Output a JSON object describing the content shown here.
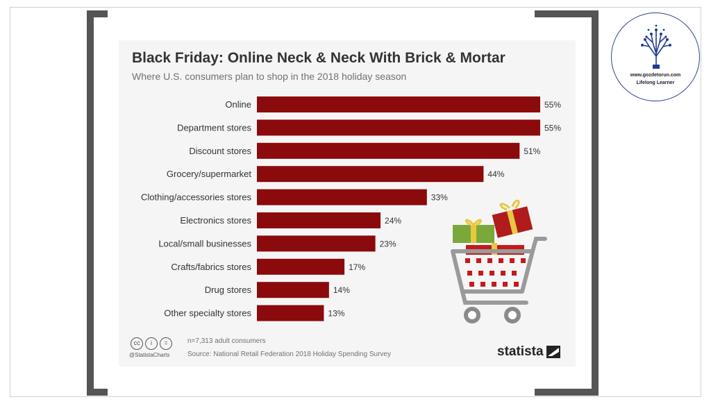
{
  "colors": {
    "bar": "#8b0a0c",
    "frame": "#555555",
    "card": "#f5f5f5",
    "badge_ring": "#2a3f8f"
  },
  "chart_data": {
    "type": "bar",
    "orientation": "horizontal",
    "title": "Black Friday: Online Neck & Neck With Brick & Mortar",
    "subtitle": "Where U.S. consumers plan to shop in the 2018 holiday season",
    "categories": [
      "Online",
      "Department stores",
      "Discount stores",
      "Grocery/supermarket",
      "Clothing/accessories stores",
      "Electronics stores",
      "Local/small businesses",
      "Crafts/fabrics stores",
      "Drug stores",
      "Other specialty stores"
    ],
    "values": [
      55,
      55,
      51,
      44,
      33,
      24,
      23,
      17,
      14,
      13
    ],
    "value_labels": [
      "55%",
      "55%",
      "51%",
      "44%",
      "33%",
      "24%",
      "23%",
      "17%",
      "14%",
      "13%"
    ],
    "xlim": [
      0,
      55
    ],
    "grid": false,
    "legend": "none"
  },
  "footer": {
    "sample_note": "n=7,313 adult consumers",
    "source": "Source: National Retail Federation 2018 Holiday Spending Survey",
    "handle": "@StatistaCharts",
    "cc_icons": [
      "cc",
      "i",
      "="
    ]
  },
  "brand": {
    "wordmark": "statista"
  },
  "badge": {
    "url": "www.gozdetorun.com",
    "tagline": "Lifelong Learner"
  }
}
